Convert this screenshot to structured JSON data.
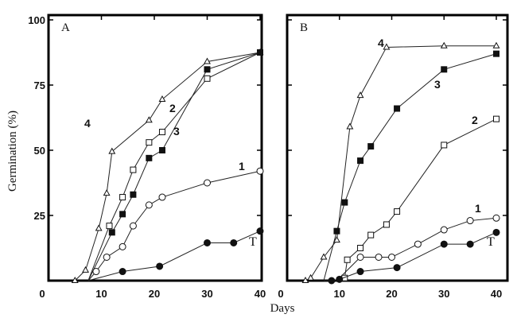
{
  "figure": {
    "ylabel": "Germination (%)",
    "xlabel": "Days"
  },
  "chart_data": [
    {
      "type": "line",
      "title": "A",
      "xlabel": "Days",
      "ylabel": "Germination (%)",
      "xlim": [
        0,
        40
      ],
      "ylim": [
        0,
        100
      ],
      "xticks": [
        0,
        10,
        20,
        30,
        40
      ],
      "yticks": [
        25,
        50,
        75,
        100
      ],
      "series": [
        {
          "name": "4",
          "marker": "open-triangle",
          "x": [
            5,
            7,
            9.5,
            11,
            12,
            19,
            21.5,
            30,
            40
          ],
          "y": [
            0,
            4,
            20,
            33.5,
            49.5,
            61.5,
            69.5,
            84,
            87.5
          ]
        },
        {
          "name": "2",
          "marker": "open-square",
          "x": [
            7.5,
            11.5,
            14,
            16,
            19,
            21.5,
            30,
            40
          ],
          "y": [
            0,
            21,
            32,
            42.5,
            53,
            57,
            77.5,
            87.5
          ]
        },
        {
          "name": "3",
          "marker": "filled-square",
          "x": [
            7.5,
            12,
            14,
            16,
            19,
            21.5,
            30,
            40
          ],
          "y": [
            0,
            18.5,
            25.5,
            33,
            47,
            50,
            81,
            87.5
          ]
        },
        {
          "name": "1",
          "marker": "open-circle",
          "x": [
            7.5,
            9,
            11,
            14,
            16,
            19,
            21.5,
            30,
            40
          ],
          "y": [
            0,
            3.5,
            9,
            13,
            21,
            29,
            32,
            37.5,
            42
          ]
        },
        {
          "name": "T",
          "marker": "filled-circle",
          "x": [
            7.5,
            14,
            21,
            30,
            35,
            40
          ],
          "y": [
            0,
            3.5,
            5.5,
            14.5,
            14.5,
            19
          ]
        }
      ]
    },
    {
      "type": "line",
      "title": "B",
      "xlabel": "Days",
      "ylabel": "Germination (%)",
      "xlim": [
        0,
        40
      ],
      "ylim": [
        0,
        100
      ],
      "xticks": [
        0,
        10,
        20,
        30,
        40
      ],
      "yticks": [
        25,
        50,
        75,
        100
      ],
      "series": [
        {
          "name": "4",
          "marker": "open-triangle",
          "x": [
            3.5,
            4.5,
            7,
            9.5,
            12,
            14,
            19,
            30,
            40
          ],
          "y": [
            0,
            1,
            9,
            15.5,
            59,
            71,
            89.5,
            90,
            90
          ]
        },
        {
          "name": "3",
          "marker": "filled-square",
          "x": [
            7,
            9.5,
            11,
            14,
            16,
            21,
            30,
            40
          ],
          "y": [
            0,
            19,
            30,
            46,
            51.5,
            66,
            81,
            87
          ]
        },
        {
          "name": "2",
          "marker": "open-square",
          "x": [
            9.5,
            11,
            11.5,
            14,
            16,
            19,
            21,
            30,
            40
          ],
          "y": [
            0,
            1,
            8,
            12.5,
            17.5,
            21.5,
            26.5,
            52,
            62
          ]
        },
        {
          "name": "1",
          "marker": "open-circle",
          "x": [
            9.5,
            14,
            17.5,
            20,
            25,
            30,
            35,
            40
          ],
          "y": [
            0,
            9,
            9,
            9,
            14,
            19.5,
            23,
            24
          ]
        },
        {
          "name": "T",
          "marker": "filled-circle",
          "x": [
            7,
            8.5,
            10,
            14,
            21,
            30,
            35,
            40
          ],
          "y": [
            0,
            0,
            0.5,
            3.5,
            5,
            14,
            14,
            18.5
          ]
        }
      ]
    }
  ]
}
